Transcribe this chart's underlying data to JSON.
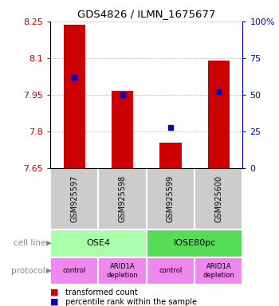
{
  "title": "GDS4826 / ILMN_1675677",
  "samples": [
    "GSM925597",
    "GSM925598",
    "GSM925599",
    "GSM925600"
  ],
  "bar_values": [
    8.235,
    7.965,
    7.755,
    8.09
  ],
  "bar_bottom": 7.65,
  "percentile_values": [
    62,
    50,
    28,
    52
  ],
  "ylim": [
    7.65,
    8.25
  ],
  "yticks": [
    7.65,
    7.8,
    7.95,
    8.1,
    8.25
  ],
  "ytick_labels": [
    "7.65",
    "7.8",
    "7.95",
    "8.1",
    "8.25"
  ],
  "right_yticks": [
    0,
    25,
    50,
    75,
    100
  ],
  "right_ytick_labels": [
    "0",
    "25",
    "50",
    "75",
    "100%"
  ],
  "bar_color": "#cc0000",
  "dot_color": "#0000cc",
  "cell_line_groups": [
    {
      "name": "OSE4",
      "start": 0,
      "end": 2,
      "color": "#aaffaa"
    },
    {
      "name": "IOSE80pc",
      "start": 2,
      "end": 4,
      "color": "#55dd55"
    }
  ],
  "protocols": [
    "control",
    "ARID1A\ndepletion",
    "control",
    "ARID1A\ndepletion"
  ],
  "protocol_color": "#ee88ee",
  "gsm_bg_color": "#cccccc",
  "cell_line_label": "cell line",
  "protocol_label": "protocol",
  "legend_bar_color": "#cc0000",
  "legend_dot_color": "#0000cc",
  "legend_bar_text": "transformed count",
  "legend_dot_text": "percentile rank within the sample"
}
